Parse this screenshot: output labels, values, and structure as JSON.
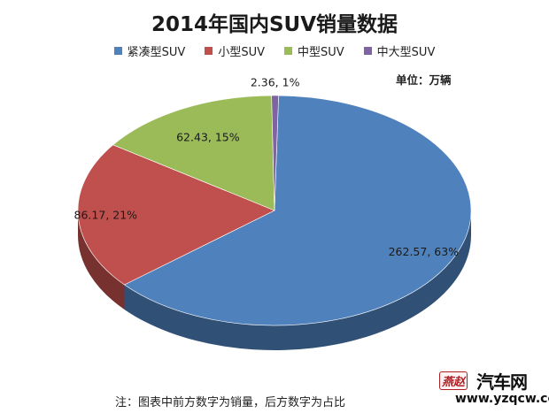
{
  "title": "2014年国内SUV销量数据",
  "unit_note": "单位：万辆",
  "footnote": "注：图表中前方数字为销量，后方数字为占比",
  "watermark": {
    "logo": "燕赵",
    "brand": "汽车网",
    "url": "www.yzqcw.com"
  },
  "chart_data": {
    "type": "pie",
    "title": "2014年国内SUV销量数据",
    "legend_position": "top",
    "labels": [
      "紧凑型SUV",
      "小型SUV",
      "中型SUV",
      "中大型SUV"
    ],
    "values": [
      262.57,
      86.17,
      62.43,
      2.36
    ],
    "percentages": [
      63,
      21,
      15,
      1
    ],
    "colors": [
      "#4f81bd",
      "#c0504d",
      "#9bbb59",
      "#8064a2"
    ],
    "data_labels": [
      "262.57, 63%",
      "86.17, 21%",
      "62.43, 15%",
      "2.36, 1%"
    ]
  }
}
